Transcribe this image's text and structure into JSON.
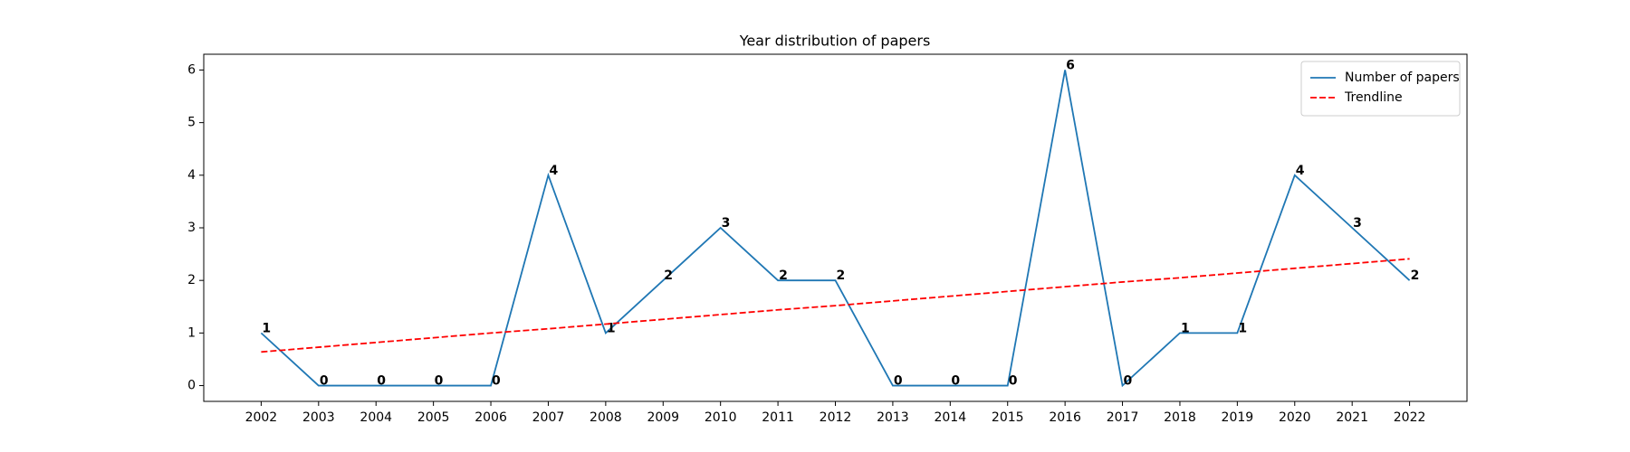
{
  "chart_data": {
    "type": "line",
    "title": "Year distribution of papers",
    "x": [
      2002,
      2003,
      2004,
      2005,
      2006,
      2007,
      2008,
      2009,
      2010,
      2011,
      2012,
      2013,
      2014,
      2015,
      2016,
      2017,
      2018,
      2019,
      2020,
      2021,
      2022
    ],
    "series": [
      {
        "name": "Number of papers",
        "color": "#1f77b4",
        "style": "solid",
        "show_labels": true,
        "values": [
          1,
          0,
          0,
          0,
          0,
          4,
          1,
          2,
          3,
          2,
          2,
          0,
          0,
          0,
          6,
          0,
          1,
          1,
          4,
          3,
          2
        ]
      },
      {
        "name": "Trendline",
        "color": "#ff0000",
        "style": "dashed",
        "show_labels": false,
        "values": [
          0.64,
          0.73,
          0.82,
          0.91,
          1.0,
          1.08,
          1.17,
          1.26,
          1.35,
          1.44,
          1.52,
          1.61,
          1.7,
          1.79,
          1.88,
          1.97,
          2.05,
          2.14,
          2.23,
          2.32,
          2.41
        ]
      }
    ],
    "xlim": [
      2001,
      2023
    ],
    "xticks": [
      2002,
      2003,
      2004,
      2005,
      2006,
      2007,
      2008,
      2009,
      2010,
      2011,
      2012,
      2013,
      2014,
      2015,
      2016,
      2017,
      2018,
      2019,
      2020,
      2021,
      2022
    ],
    "ylim": [
      -0.3,
      6.3
    ],
    "yticks": [
      0,
      1,
      2,
      3,
      4,
      5,
      6
    ],
    "grid": false,
    "legend": "upper right"
  }
}
